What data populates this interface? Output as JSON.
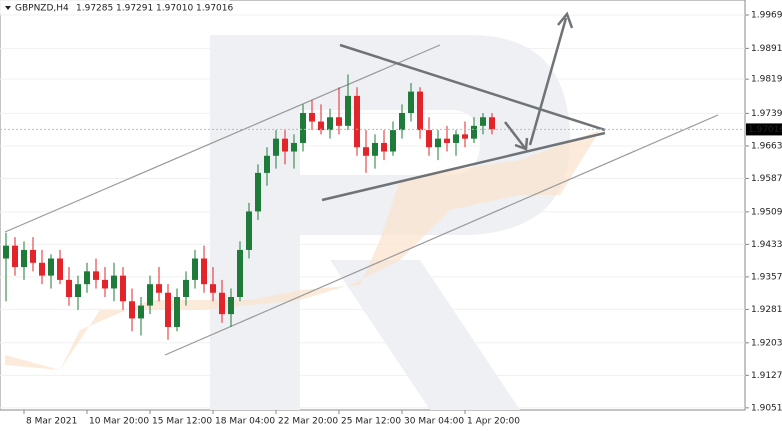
{
  "chart_data": {
    "type": "candlestick",
    "title": "GBPNZD,H4",
    "header_ohlc": [
      {
        "value": 1.97285,
        "label": "1.97285"
      },
      {
        "value": 1.97291,
        "label": "1.97291"
      },
      {
        "value": 1.9701,
        "label": "1.97010"
      },
      {
        "value": 1.97016,
        "label": "1.97016"
      }
    ],
    "last_price": {
      "value": 1.97016,
      "label": "1.97016"
    },
    "categories": [
      null,
      null,
      "8 Mar 2021",
      null,
      null,
      null,
      null,
      null,
      null,
      "10 Mar 20:00",
      null,
      null,
      null,
      null,
      null,
      null,
      "15 Mar 12:00",
      null,
      null,
      null,
      null,
      null,
      null,
      "18 Mar 04:00",
      null,
      null,
      null,
      null,
      null,
      null,
      "22 Mar 20:00",
      null,
      null,
      null,
      null,
      null,
      null,
      "25 Mar 12:00",
      null,
      null,
      null,
      null,
      null,
      null,
      "30 Mar 04:00",
      null,
      null,
      null,
      null,
      null,
      null,
      "1 Apr 20:00",
      null,
      null,
      null
    ],
    "open": [
      1.94,
      1.943,
      1.938,
      1.942,
      1.939,
      1.936,
      1.94,
      1.935,
      1.931,
      1.934,
      1.937,
      1.935,
      1.933,
      1.936,
      1.93,
      1.926,
      1.929,
      1.934,
      1.932,
      1.924,
      1.931,
      1.935,
      1.94,
      1.934,
      1.932,
      1.927,
      1.931,
      1.942,
      1.951,
      1.96,
      1.964,
      1.968,
      1.965,
      1.967,
      1.974,
      1.972,
      1.97,
      1.973,
      1.971,
      1.978,
      1.966,
      1.964,
      1.967,
      1.965,
      1.97,
      1.974,
      1.979,
      1.97,
      1.966,
      1.968,
      1.967,
      1.969,
      1.968,
      1.971,
      1.973
    ],
    "high": [
      1.946,
      1.945,
      1.944,
      1.945,
      1.942,
      1.941,
      1.942,
      1.938,
      1.936,
      1.939,
      1.94,
      1.938,
      1.939,
      1.938,
      1.933,
      1.931,
      1.936,
      1.938,
      1.934,
      1.933,
      1.937,
      1.942,
      1.943,
      1.938,
      1.935,
      1.933,
      1.944,
      1.953,
      1.962,
      1.966,
      1.97,
      1.97,
      1.969,
      1.976,
      1.977,
      1.976,
      1.975,
      1.98,
      1.983,
      1.98,
      1.97,
      1.969,
      1.97,
      1.972,
      1.976,
      1.981,
      1.98,
      1.973,
      1.97,
      1.971,
      1.97,
      1.972,
      1.973,
      1.974,
      1.974
    ],
    "low": [
      1.93,
      1.936,
      1.935,
      1.937,
      1.934,
      1.933,
      1.934,
      1.929,
      1.928,
      1.932,
      1.933,
      1.931,
      1.93,
      1.928,
      1.923,
      1.922,
      1.927,
      1.93,
      1.921,
      1.923,
      1.929,
      1.933,
      1.932,
      1.93,
      1.925,
      1.924,
      1.93,
      1.94,
      1.949,
      1.957,
      1.961,
      1.962,
      1.961,
      1.965,
      1.97,
      1.969,
      1.968,
      1.969,
      1.97,
      1.964,
      1.96,
      1.961,
      1.963,
      1.964,
      1.968,
      1.972,
      1.968,
      1.964,
      1.963,
      1.965,
      1.964,
      1.966,
      1.967,
      1.969,
      1.969
    ],
    "close": [
      1.943,
      1.938,
      1.942,
      1.939,
      1.936,
      1.94,
      1.935,
      1.931,
      1.934,
      1.937,
      1.935,
      1.933,
      1.936,
      1.93,
      1.926,
      1.929,
      1.934,
      1.932,
      1.924,
      1.931,
      1.935,
      1.94,
      1.934,
      1.932,
      1.927,
      1.931,
      1.942,
      1.951,
      1.96,
      1.964,
      1.968,
      1.965,
      1.967,
      1.974,
      1.972,
      1.97,
      1.973,
      1.971,
      1.978,
      1.966,
      1.964,
      1.967,
      1.965,
      1.97,
      1.974,
      1.979,
      1.97,
      1.966,
      1.968,
      1.967,
      1.969,
      1.968,
      1.971,
      1.973,
      1.97016
    ],
    "up_color": "#1e7b3a",
    "down_color": "#e3242b",
    "ylim": [
      1.9046,
      2.0004
    ],
    "yticks": [
      {
        "value": 1.9969,
        "label": "1.99690"
      },
      {
        "value": 1.9891,
        "label": "1.98910"
      },
      {
        "value": 1.9819,
        "label": "1.98190"
      },
      {
        "value": 1.9739,
        "label": "1.97390"
      },
      {
        "value": 1.9663,
        "label": "1.96630"
      },
      {
        "value": 1.9587,
        "label": "1.95870"
      },
      {
        "value": 1.9509,
        "label": "1.95090"
      },
      {
        "value": 1.9433,
        "label": "1.94330"
      },
      {
        "value": 1.9357,
        "label": "1.93570"
      },
      {
        "value": 1.9281,
        "label": "1.92810"
      },
      {
        "value": 1.9203,
        "label": "1.92030"
      },
      {
        "value": 1.9127,
        "label": "1.91270"
      },
      {
        "value": 1.9051,
        "label": "1.90510"
      }
    ],
    "grid": true
  }
}
